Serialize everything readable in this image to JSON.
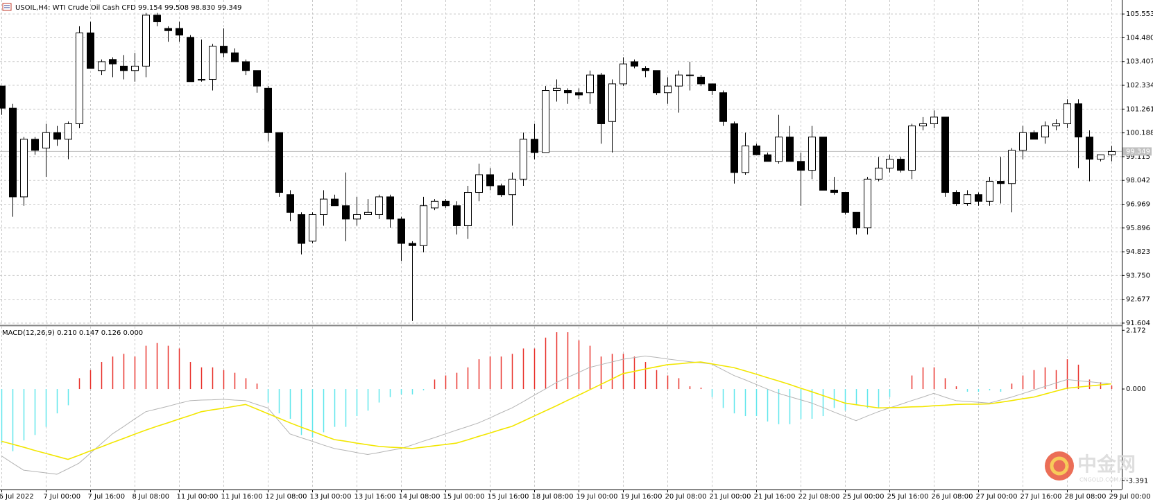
{
  "chart_data": [
    {
      "type": "candlestick",
      "title": "USOIL,H4:  WTI Crude Oil Cash CFD  99.154 99.508 98.830 99.349",
      "categories": [
        "6 Jul 2022",
        null,
        null,
        null,
        "7 Jul 00:00",
        null,
        null,
        null,
        "7 Jul 16:00",
        null,
        null,
        null,
        "8 Jul 08:00",
        null,
        null,
        null,
        "11 Jul 00:00",
        null,
        null,
        null,
        "11 Jul 16:00",
        null,
        null,
        null,
        "12 Jul 08:00",
        null,
        null,
        null,
        "13 Jul 00:00",
        null,
        null,
        null,
        "13 Jul 16:00",
        null,
        null,
        null,
        "14 Jul 08:00",
        null,
        null,
        null,
        "15 Jul 00:00",
        null,
        null,
        null,
        "15 Jul 16:00",
        null,
        null,
        null,
        "18 Jul 08:00",
        null,
        null,
        null,
        "19 Jul 00:00",
        null,
        null,
        null,
        "19 Jul 16:00",
        null,
        null,
        null,
        "20 Jul 08:00",
        null,
        null,
        null,
        "21 Jul 00:00",
        null,
        null,
        null,
        "21 Jul 16:00",
        null,
        null,
        null,
        "22 Jul 08:00",
        null,
        null,
        null,
        "25 Jul 00:00",
        null,
        null,
        null,
        "25 Jul 16:00",
        null,
        null,
        null,
        "26 Jul 08:00",
        null,
        null,
        null,
        "27 Jul 00:00",
        null,
        null,
        null,
        "27 Jul 16:00",
        null,
        null,
        null,
        "28 Jul 08:00",
        null,
        null,
        null,
        "29 Jul 00:00"
      ],
      "open": [
        102.3,
        101.3,
        97.3,
        99.9,
        99.5,
        100.2,
        99.9,
        100.6,
        104.7,
        103.0,
        103.5,
        103.2,
        103.0,
        103.2,
        105.5,
        104.9,
        104.9,
        104.5,
        102.6,
        102.6,
        104.1,
        103.8,
        103.4,
        103.0,
        102.2,
        100.2,
        97.4,
        96.5,
        95.3,
        96.5,
        97.2,
        96.9,
        96.3,
        96.5,
        96.5,
        97.3,
        96.3,
        95.2,
        95.1,
        96.8,
        97.1,
        96.9,
        96.0,
        97.5,
        98.3,
        97.8,
        97.4,
        98.1,
        99.9,
        99.3,
        102.1,
        102.1,
        102.0,
        102.0,
        102.8,
        100.7,
        102.4,
        103.4,
        103.1,
        103.0,
        102.0,
        102.3,
        102.8,
        102.7,
        102.4,
        102.0,
        100.6,
        98.4,
        99.6,
        99.2,
        98.9,
        100.0,
        98.9,
        98.5,
        100.0,
        97.6,
        97.5,
        96.6,
        95.9,
        98.1,
        98.6,
        99.0,
        98.5,
        100.5,
        100.6,
        100.9,
        97.5,
        97.0,
        97.4,
        97.1,
        98.0,
        97.9,
        99.4,
        100.2,
        100.0,
        100.5,
        100.6,
        101.5,
        100.0,
        99.0,
        99.2
      ],
      "high": [
        102.3,
        101.5,
        100.0,
        100.0,
        100.6,
        100.5,
        100.7,
        105.0,
        105.2,
        103.5,
        103.6,
        103.7,
        103.8,
        105.6,
        105.6,
        105.0,
        105.2,
        104.6,
        104.4,
        104.2,
        104.9,
        104.0,
        103.5,
        103.0,
        102.3,
        100.2,
        97.6,
        96.6,
        96.6,
        97.6,
        97.4,
        98.4,
        97.3,
        97.2,
        97.4,
        97.4,
        96.4,
        95.3,
        97.3,
        97.2,
        97.2,
        97.1,
        97.8,
        98.8,
        98.6,
        97.9,
        98.4,
        100.2,
        100.6,
        102.3,
        102.6,
        102.2,
        102.2,
        103.0,
        102.9,
        102.6,
        103.6,
        103.5,
        103.2,
        103.0,
        102.7,
        103.0,
        103.4,
        102.8,
        102.4,
        102.1,
        100.7,
        100.2,
        99.7,
        99.3,
        101.0,
        100.5,
        99.3,
        100.5,
        100.0,
        98.2,
        97.5,
        96.6,
        98.2,
        99.1,
        99.2,
        99.1,
        100.6,
        100.9,
        101.2,
        100.9,
        97.6,
        97.6,
        97.5,
        98.2,
        99.1,
        99.5,
        100.5,
        100.3,
        100.7,
        100.8,
        101.7,
        101.7,
        100.3,
        99.2,
        99.6
      ],
      "low": [
        101.0,
        96.4,
        96.9,
        99.2,
        98.2,
        99.6,
        99.0,
        100.4,
        103.1,
        102.8,
        102.7,
        102.6,
        102.5,
        102.7,
        105.0,
        104.3,
        104.3,
        102.5,
        102.5,
        102.1,
        103.6,
        103.4,
        102.8,
        102.0,
        99.8,
        97.3,
        96.2,
        94.7,
        95.2,
        96.0,
        96.9,
        95.3,
        96.0,
        96.5,
        96.3,
        95.9,
        94.4,
        91.7,
        94.8,
        96.7,
        96.8,
        95.6,
        95.4,
        97.1,
        97.6,
        97.3,
        96.0,
        97.8,
        99.0,
        99.3,
        101.6,
        101.5,
        101.7,
        101.5,
        99.7,
        99.3,
        102.3,
        103.1,
        102.7,
        101.9,
        101.5,
        101.1,
        102.1,
        102.3,
        101.9,
        100.5,
        97.9,
        98.3,
        99.2,
        98.9,
        98.8,
        98.9,
        96.9,
        98.1,
        97.6,
        97.4,
        96.5,
        95.6,
        95.6,
        98.0,
        98.4,
        98.4,
        98.1,
        100.3,
        100.4,
        97.3,
        96.9,
        96.9,
        96.9,
        96.9,
        97.0,
        96.6,
        99.0,
        99.9,
        99.7,
        100.3,
        100.4,
        98.6,
        98.0,
        98.9,
        98.9
      ],
      "close": [
        101.3,
        97.3,
        99.9,
        99.4,
        100.2,
        99.9,
        100.6,
        104.7,
        103.1,
        103.4,
        103.3,
        103.0,
        103.2,
        105.5,
        105.2,
        104.8,
        104.6,
        102.5,
        102.6,
        104.1,
        103.8,
        103.4,
        103.0,
        102.3,
        100.2,
        97.5,
        96.6,
        95.2,
        96.5,
        97.2,
        96.9,
        96.3,
        96.5,
        96.6,
        97.3,
        96.3,
        95.2,
        95.1,
        96.9,
        97.1,
        96.9,
        96.0,
        97.5,
        98.3,
        97.8,
        97.4,
        98.1,
        99.9,
        99.3,
        102.1,
        102.2,
        102.0,
        101.9,
        102.8,
        100.6,
        102.4,
        103.3,
        103.2,
        103.0,
        102.0,
        102.3,
        102.8,
        102.8,
        102.4,
        102.1,
        100.7,
        98.4,
        99.6,
        99.2,
        98.9,
        100.0,
        98.9,
        98.5,
        100.0,
        97.6,
        97.5,
        96.6,
        95.9,
        98.1,
        98.6,
        99.0,
        98.5,
        100.5,
        100.6,
        100.9,
        97.5,
        97.0,
        97.4,
        97.1,
        98.0,
        97.9,
        99.4,
        100.2,
        99.9,
        100.5,
        100.6,
        101.5,
        100.0,
        99.0,
        99.2,
        99.35
      ],
      "up_color": "#ffffff",
      "down_color": "#000000",
      "last_price": 99.349,
      "ylim": [
        91.54,
        106.184
      ],
      "yticks": [
        105.553,
        {
          "value": 104.48,
          "label": "104.480"
        },
        103.407,
        102.334,
        101.261,
        100.188,
        99.115,
        98.042,
        96.969,
        95.896,
        94.823,
        {
          "value": 93.75,
          "label": "93.750"
        },
        92.677,
        91.604
      ],
      "grid": true
    },
    {
      "type": "macd",
      "title": "MACD(12,26,9) 0.210 0.147 0.126 0.000",
      "histogram": [
        -2.0,
        -2.3,
        -1.9,
        -1.7,
        -1.4,
        -0.9,
        -0.6,
        0.4,
        0.7,
        1.0,
        1.2,
        1.3,
        1.2,
        1.6,
        1.7,
        1.6,
        1.5,
        1.0,
        0.8,
        0.8,
        0.7,
        0.6,
        0.4,
        0.2,
        -0.5,
        -0.9,
        -1.1,
        -1.7,
        -1.8,
        -1.6,
        -1.4,
        -1.4,
        -1.0,
        -0.8,
        -0.5,
        -0.3,
        -0.2,
        -0.2,
        -0.05,
        0.35,
        0.5,
        0.6,
        0.8,
        1.1,
        1.2,
        1.2,
        1.3,
        1.5,
        1.5,
        1.9,
        2.1,
        2.1,
        1.8,
        1.6,
        1.2,
        1.3,
        1.3,
        1.2,
        1.0,
        0.7,
        0.5,
        0.4,
        0.1,
        0.05,
        -0.3,
        -0.7,
        -0.9,
        -1.0,
        -1.0,
        -1.2,
        -1.3,
        -1.3,
        -1.1,
        -1.1,
        -1.0,
        -0.7,
        -0.8,
        -0.6,
        -0.7,
        -0.7,
        -0.3,
        0,
        0.5,
        0.8,
        0.8,
        0.4,
        0.1,
        -0.1,
        -0.1,
        -0.05,
        -0.1,
        0.2,
        0.5,
        0.7,
        0.8,
        0.7,
        1.1,
        0.9,
        0.35,
        0.25,
        0.13
      ],
      "main": [
        -2.47,
        -2.74,
        -3.0,
        -3.05,
        -3.1,
        -3.15,
        -2.95,
        -2.74,
        -2.38,
        -2.02,
        -1.66,
        -1.39,
        -1.11,
        -0.84,
        -0.74,
        -0.64,
        -0.53,
        -0.43,
        -0.41,
        -0.4,
        -0.38,
        -0.41,
        -0.43,
        -0.57,
        -0.7,
        -1.18,
        -1.66,
        -1.8,
        -1.93,
        -2.07,
        -2.2,
        -2.27,
        -2.35,
        -2.42,
        -2.35,
        -2.27,
        -2.2,
        -2.07,
        -1.93,
        -1.8,
        -1.66,
        -1.52,
        -1.39,
        -1.25,
        -1.07,
        -0.88,
        -0.7,
        -0.47,
        -0.23,
        0.0,
        0.24,
        0.43,
        0.61,
        0.8,
        0.9,
        1.0,
        1.1,
        1.16,
        1.22,
        1.17,
        1.11,
        1.06,
        1.01,
        0.97,
        0.92,
        0.71,
        0.5,
        0.34,
        0.17,
        0.0,
        -0.16,
        -0.28,
        -0.4,
        -0.52,
        -0.68,
        -0.85,
        -1.01,
        -1.17,
        -1.0,
        -0.84,
        -0.7,
        -0.57,
        -0.43,
        -0.3,
        -0.16,
        -0.3,
        -0.43,
        -0.46,
        -0.49,
        -0.52,
        -0.41,
        -0.3,
        -0.17,
        -0.04,
        0.09,
        0.22,
        0.35,
        0.31,
        0.27,
        0.23,
        0.19
      ],
      "signal": [
        -1.93,
        -2.04,
        -2.15,
        -2.27,
        -2.38,
        -2.49,
        -2.6,
        -2.45,
        -2.29,
        -2.14,
        -1.98,
        -1.83,
        -1.67,
        -1.52,
        -1.38,
        -1.25,
        -1.11,
        -0.98,
        -0.84,
        -0.77,
        -0.71,
        -0.64,
        -0.57,
        -0.74,
        -0.91,
        -1.08,
        -1.25,
        -1.41,
        -1.56,
        -1.72,
        -1.87,
        -1.93,
        -2.0,
        -2.06,
        -2.12,
        -2.15,
        -2.17,
        -2.2,
        -2.15,
        -2.1,
        -2.05,
        -2.0,
        -1.88,
        -1.75,
        -1.63,
        -1.5,
        -1.38,
        -1.19,
        -1.0,
        -0.81,
        -0.62,
        -0.42,
        -0.23,
        -0.03,
        0.17,
        0.37,
        0.57,
        0.65,
        0.74,
        0.82,
        0.9,
        0.93,
        0.97,
        1.0,
        0.93,
        0.86,
        0.79,
        0.67,
        0.55,
        0.42,
        0.3,
        0.17,
        0.03,
        -0.1,
        -0.24,
        -0.38,
        -0.52,
        -0.58,
        -0.64,
        -0.7,
        -0.69,
        -0.68,
        -0.66,
        -0.65,
        -0.62,
        -0.6,
        -0.57,
        -0.56,
        -0.56,
        -0.55,
        -0.49,
        -0.43,
        -0.36,
        -0.3,
        -0.19,
        -0.08,
        0.03,
        0.07,
        0.11,
        0.15,
        0.19
      ],
      "up_color": "#e8302a",
      "down_color": "#5fe6ec",
      "main_color": "#b4b4b4",
      "signal_color": "#f2e600",
      "ylim": [
        -3.69,
        2.308
      ],
      "yticks": [
        2.172,
        {
          "value": 0,
          "label": "0.000"
        },
        -3.391
      ],
      "grid": true
    }
  ],
  "watermark": {
    "name": "中金网",
    "site": "CNGOLD.COM.CN"
  }
}
